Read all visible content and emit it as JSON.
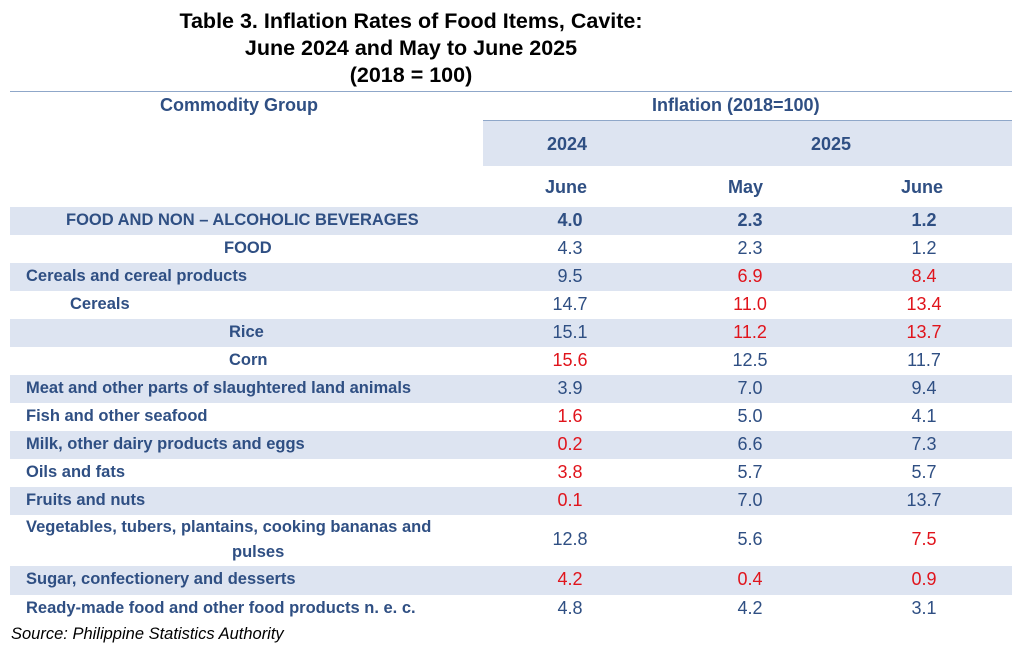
{
  "title": {
    "line1": "Table 3.  Inflation Rates of Food Items, Cavite:",
    "line2": "June 2024 and May to June 2025",
    "line3": "(2018 = 100)"
  },
  "header": {
    "commodity_group": "Commodity Group",
    "inflation": "Inflation (2018=100)",
    "year_2024": "2024",
    "year_2025": "2025",
    "col1_month": "June",
    "col2_month": "May",
    "col3_month": "June"
  },
  "rows": [
    {
      "label": "FOOD AND NON – ALCOHOLIC BEVERAGES",
      "v1": "4.0",
      "v2": "2.3",
      "v3": "1.2"
    },
    {
      "label": "FOOD",
      "v1": "4.3",
      "v2": "2.3",
      "v3": "1.2"
    },
    {
      "label": "Cereals and cereal products",
      "v1": "9.5",
      "v2": "6.9",
      "v3": "8.4"
    },
    {
      "label": "Cereals",
      "v1": "14.7",
      "v2": "11.0",
      "v3": "13.4"
    },
    {
      "label": "Rice",
      "v1": "15.1",
      "v2": "11.2",
      "v3": "13.7"
    },
    {
      "label": "Corn",
      "v1": "15.6",
      "v2": "12.5",
      "v3": "11.7"
    },
    {
      "label": "Meat and other parts of slaughtered land animals",
      "v1": "3.9",
      "v2": "7.0",
      "v3": "9.4"
    },
    {
      "label": "Fish and other seafood",
      "v1": "1.6",
      "v2": "5.0",
      "v3": "4.1"
    },
    {
      "label": "Milk, other dairy products and eggs",
      "v1": "0.2",
      "v2": "6.6",
      "v3": "7.3"
    },
    {
      "label": "Oils and fats",
      "v1": "3.8",
      "v2": "5.7",
      "v3": "5.7"
    },
    {
      "label": "Fruits and nuts",
      "v1": "0.1",
      "v2": "7.0",
      "v3": "13.7"
    },
    {
      "label": "Vegetables, tubers, plantains, cooking bananas and",
      "label2": "pulses",
      "v1": "12.8",
      "v2": "5.6",
      "v3": "7.5"
    },
    {
      "label": "Sugar, confectionery and desserts",
      "v1": "4.2",
      "v2": "0.4",
      "v3": "0.9"
    },
    {
      "label": "Ready-made food and other food products n. e. c.",
      "v1": "4.8",
      "v2": "4.2",
      "v3": "3.1"
    }
  ],
  "source": "Source: Philippine Statistics Authority",
  "colors": {
    "text_blue": "#2f4f83",
    "highlight_red": "#e0141c",
    "band": "#dde4f1"
  }
}
